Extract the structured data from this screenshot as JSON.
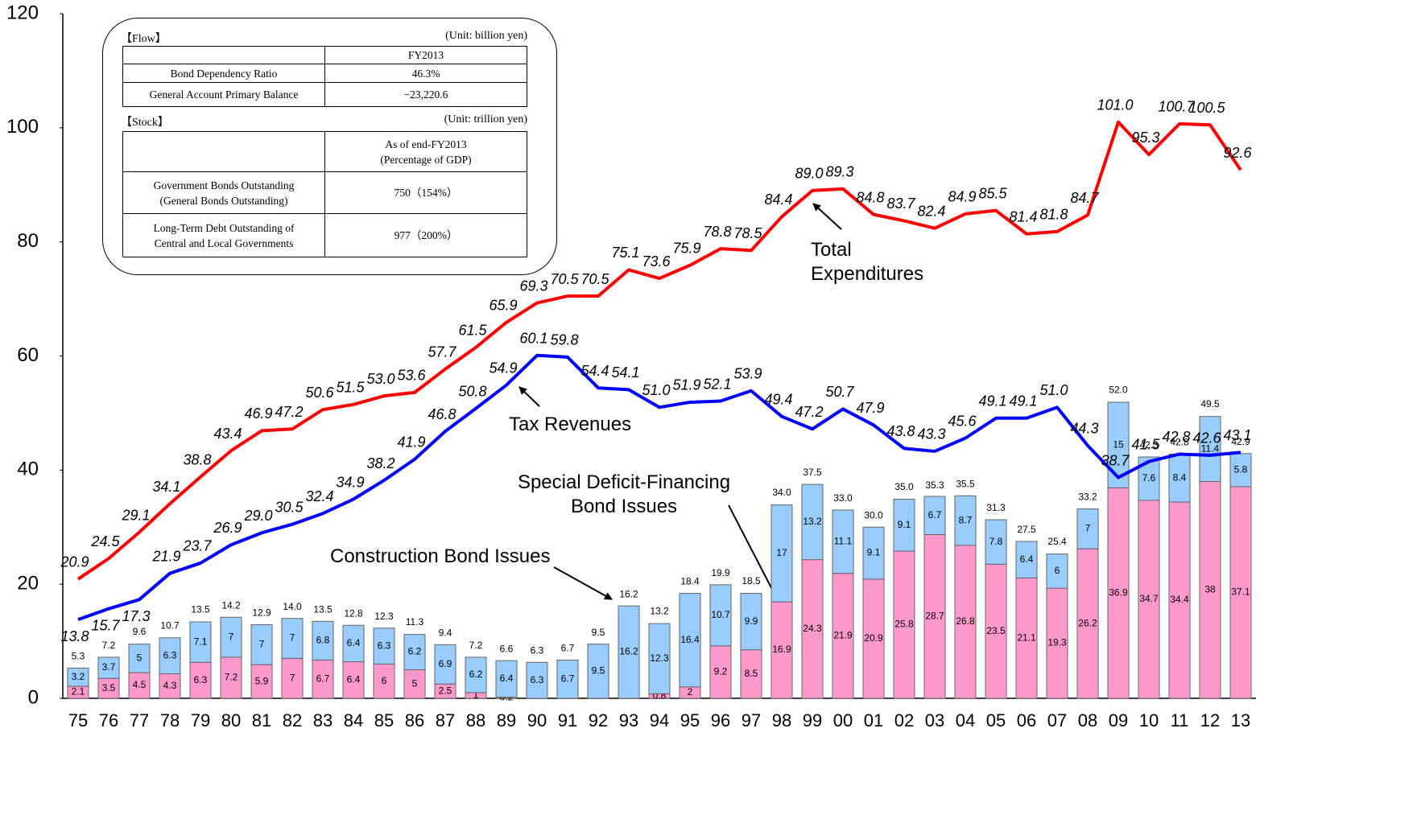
{
  "chart_data": {
    "type": "combo",
    "categories": [
      "75",
      "76",
      "77",
      "78",
      "79",
      "80",
      "81",
      "82",
      "83",
      "84",
      "85",
      "86",
      "87",
      "88",
      "89",
      "90",
      "91",
      "92",
      "93",
      "94",
      "95",
      "96",
      "97",
      "98",
      "99",
      "00",
      "01",
      "02",
      "03",
      "04",
      "05",
      "06",
      "07",
      "08",
      "09",
      "10",
      "11",
      "12",
      "13"
    ],
    "ylim": [
      0,
      120
    ],
    "yticks": [
      0,
      20,
      40,
      60,
      80,
      100,
      120
    ],
    "grid": false,
    "series": [
      {
        "name": "Special Deficit-Financing Bond Issues",
        "kind": "bar",
        "color": "#ff99cc",
        "values": [
          2.1,
          3.5,
          4.5,
          4.3,
          6.3,
          7.2,
          5.9,
          7.0,
          6.7,
          6.4,
          6.0,
          5.0,
          2.5,
          1.0,
          0.2,
          null,
          null,
          null,
          null,
          0.8,
          2.0,
          9.2,
          8.5,
          16.9,
          24.3,
          21.9,
          20.9,
          25.8,
          28.7,
          26.8,
          23.5,
          21.1,
          19.3,
          26.2,
          36.9,
          34.7,
          34.4,
          38.0,
          37.1
        ]
      },
      {
        "name": "Construction Bond Issues",
        "kind": "bar",
        "color": "#99ccff",
        "values": [
          3.2,
          3.7,
          5.0,
          6.3,
          7.1,
          7.0,
          7.0,
          7.0,
          6.8,
          6.4,
          6.3,
          6.2,
          6.9,
          6.2,
          6.4,
          6.3,
          6.7,
          9.5,
          16.2,
          12.3,
          16.4,
          10.7,
          9.9,
          17.0,
          13.2,
          11.1,
          9.1,
          9.1,
          6.7,
          8.7,
          7.8,
          6.4,
          6.0,
          7.0,
          15.0,
          7.6,
          8.4,
          11.4,
          5.8
        ]
      },
      {
        "name": "Total Expenditures",
        "kind": "line",
        "color": "#ff0000",
        "values": [
          20.9,
          24.5,
          29.1,
          34.1,
          38.8,
          43.4,
          46.9,
          47.2,
          50.6,
          51.5,
          53.0,
          53.6,
          57.7,
          61.5,
          65.9,
          69.3,
          70.5,
          70.5,
          75.1,
          73.6,
          75.9,
          78.8,
          78.5,
          84.4,
          89.0,
          89.3,
          84.8,
          83.7,
          82.4,
          84.9,
          85.5,
          81.4,
          81.8,
          84.7,
          101.0,
          95.3,
          100.7,
          100.5,
          92.6
        ],
        "value_labels": [
          "20.9",
          "24.5",
          "29.1",
          "34.1",
          "38.8",
          "43.4",
          "46.9",
          "47.2",
          "50.6",
          "51.5",
          "53.0",
          "53.6",
          "57.7",
          "61.5",
          "65.9",
          "69.3",
          "70.5",
          "70.5",
          "75.1",
          "73.6",
          "75.9",
          "78.8",
          "78.5",
          "84.4",
          "89.0",
          "89.3",
          "84.8",
          "83.7",
          "82.4",
          "84.9",
          "85.5",
          "81.4",
          "81.8",
          "84.7",
          "101.0",
          "95.3",
          "100.7",
          "100.5",
          "92.6"
        ]
      },
      {
        "name": "Tax Revenues",
        "kind": "line",
        "color": "#0000ff",
        "values": [
          13.8,
          15.7,
          17.3,
          21.9,
          23.7,
          26.9,
          29.0,
          30.5,
          32.4,
          34.9,
          38.2,
          41.9,
          46.8,
          50.8,
          54.9,
          60.1,
          59.8,
          54.4,
          54.1,
          51.0,
          51.9,
          52.1,
          53.9,
          49.4,
          47.2,
          50.7,
          47.9,
          43.8,
          43.3,
          45.6,
          49.1,
          49.1,
          51.0,
          44.3,
          38.7,
          41.5,
          42.8,
          42.6,
          43.1
        ],
        "value_labels": [
          "13.8",
          "15.7",
          "17.3",
          "21.9",
          "23.7",
          "26.9",
          "29.0",
          "30.5",
          "32.4",
          "34.9",
          "38.2",
          "41.9",
          "46.8",
          "50.8",
          "54.9",
          "60.1",
          "59.8",
          "54.4",
          "54.1",
          "51.0",
          "51.9",
          "52.1",
          "53.9",
          "49.4",
          "47.2",
          "50.7",
          "47.9",
          "43.8",
          "43.3",
          "45.6",
          "49.1",
          "49.1",
          "51.0",
          "44.3",
          "38.7",
          "41.5",
          "42.8",
          "42.6",
          "43.1"
        ]
      }
    ],
    "bar_totals": [
      5.3,
      7.2,
      9.6,
      10.7,
      13.5,
      14.2,
      12.9,
      14.0,
      13.5,
      12.8,
      12.3,
      11.3,
      9.4,
      7.2,
      6.6,
      6.3,
      6.7,
      9.5,
      16.2,
      13.2,
      18.4,
      19.9,
      18.5,
      34.0,
      37.5,
      33.0,
      30.0,
      35.0,
      35.3,
      35.5,
      31.3,
      27.5,
      25.4,
      33.2,
      52.0,
      42.3,
      42.8,
      49.5,
      42.9
    ],
    "bar_total_labels": [
      "5.3",
      "7.2",
      "9.6",
      "10.7",
      "13.5",
      "14.2",
      "12.9",
      "14.0",
      "13.5",
      "12.8",
      "12.3",
      "11.3",
      "9.4",
      "7.2",
      "6.6",
      "6.3",
      "6.7",
      "9.5",
      "16.2",
      "13.2",
      "18.4",
      "19.9",
      "18.5",
      "34.0",
      "37.5",
      "33.0",
      "30.0",
      "35.0",
      "35.3",
      "35.5",
      "31.3",
      "27.5",
      "25.4",
      "33.2",
      "52.0",
      "42.3",
      "42.8",
      "49.5",
      "42.9"
    ]
  },
  "inset": {
    "flow": {
      "title": "【Flow】",
      "unit": "(Unit: billion yen)",
      "header": "FY2013",
      "rows": [
        [
          "Bond Dependency Ratio",
          "46.3%"
        ],
        [
          "General Account Primary Balance",
          "−23,220.6"
        ]
      ]
    },
    "stock": {
      "title": "【Stock】",
      "unit": "(Unit: trillion yen)",
      "header": [
        "As of end-FY2013",
        "(Percentage of GDP)"
      ],
      "rows": [
        [
          [
            "Government Bonds Outstanding",
            "(General Bonds Outstanding)"
          ],
          "750（154%）"
        ],
        [
          [
            "Long-Term Debt Outstanding of",
            "Central and Local Governments"
          ],
          "977（200%）"
        ]
      ]
    }
  }
}
